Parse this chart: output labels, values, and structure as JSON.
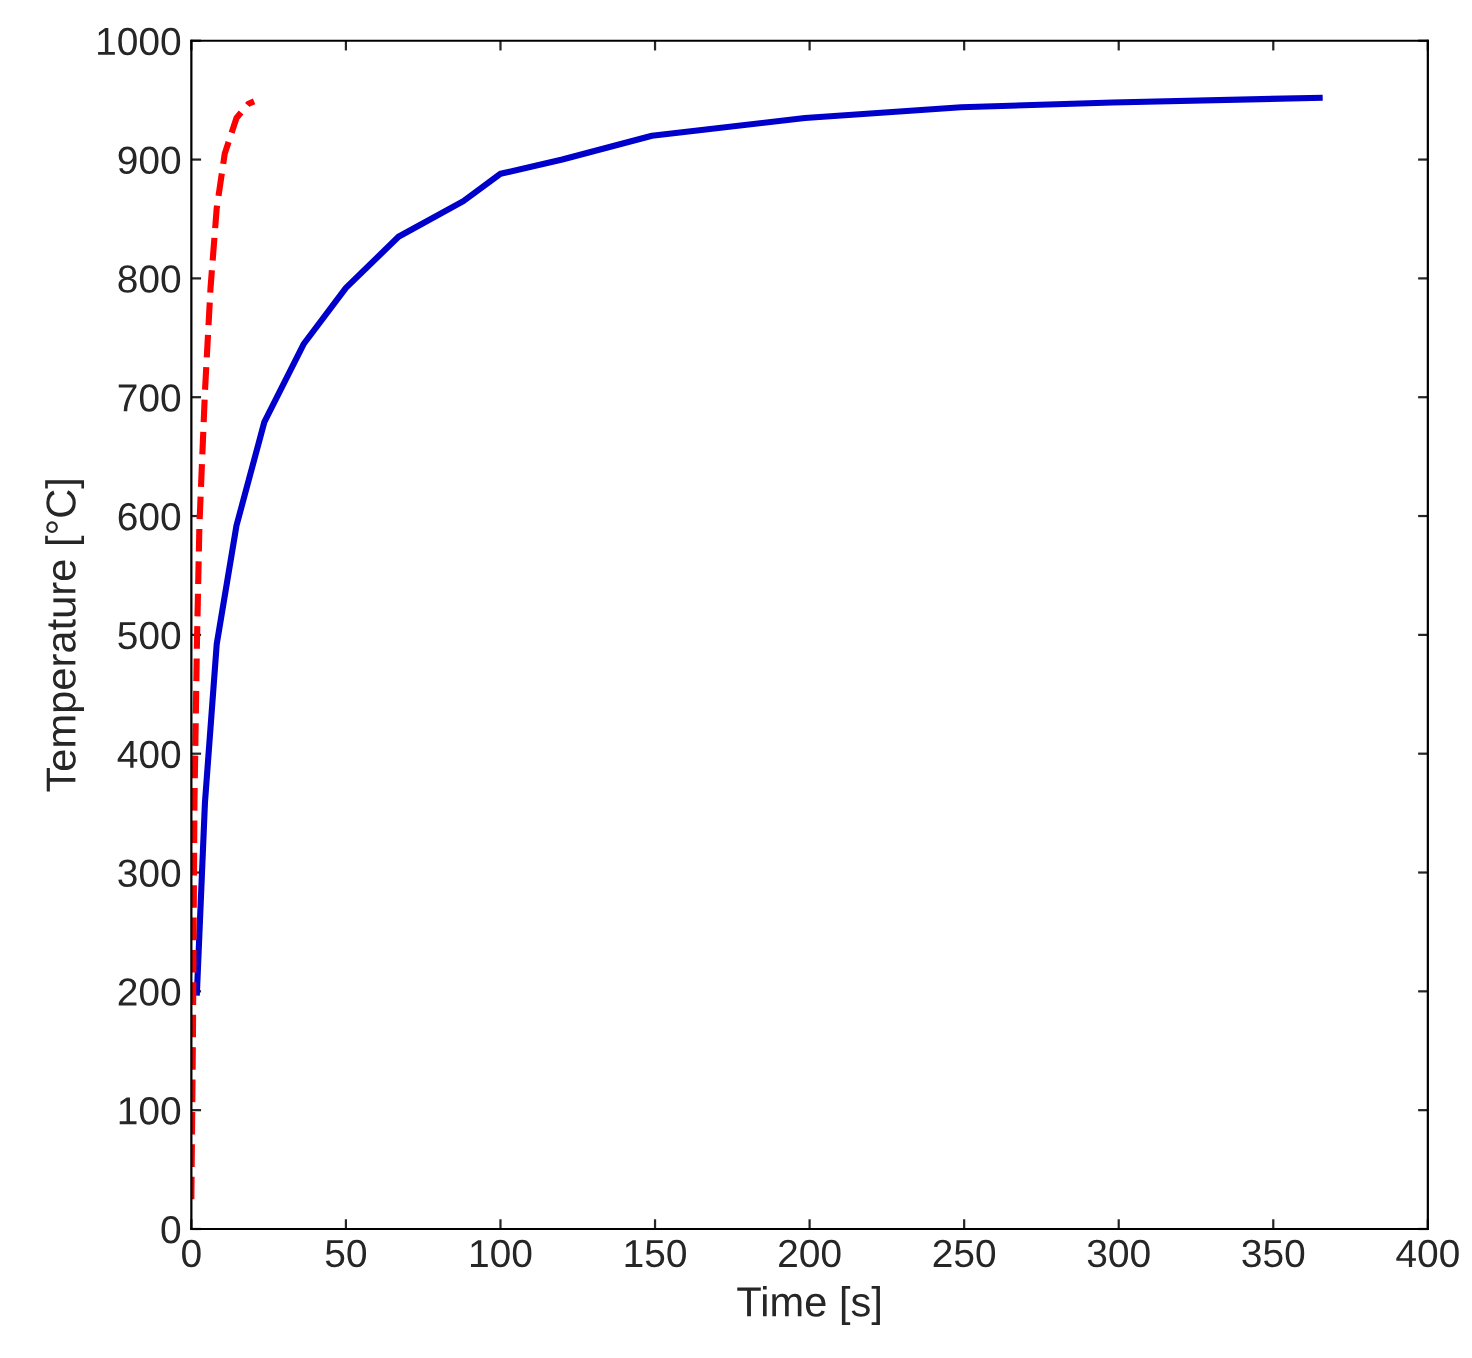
{
  "chart_data": {
    "type": "line",
    "xlabel": "Time [s]",
    "ylabel": "Temperature [°C]",
    "xlim": [
      0,
      400
    ],
    "ylim": [
      0,
      1000
    ],
    "xticks": [
      0,
      50,
      100,
      150,
      200,
      250,
      300,
      350,
      400
    ],
    "yticks": [
      0,
      100,
      200,
      300,
      400,
      500,
      600,
      700,
      800,
      900,
      1000
    ],
    "grid": false,
    "series": [
      {
        "color": "#0000cc",
        "line_style": "solid",
        "x": [
          1.8,
          4.4,
          8.2,
          14.6,
          23.6,
          36.4,
          50,
          67,
          88,
          100,
          120,
          149,
          198.5,
          249,
          298,
          365
        ],
        "values": [
          199,
          359,
          492,
          592,
          679,
          745,
          792,
          835,
          865,
          888,
          900,
          920,
          935,
          944,
          948,
          952
        ]
      },
      {
        "color": "#ff0000",
        "line_style": "dashed",
        "x": [
          0,
          0.5,
          1,
          1.8,
          2.6,
          4.4,
          6.2,
          8.2,
          10.8,
          14.6,
          18.5,
          20.3
        ],
        "values": [
          25,
          159,
          359,
          492,
          592,
          705,
          792,
          859,
          905,
          935,
          947,
          949
        ]
      }
    ]
  }
}
